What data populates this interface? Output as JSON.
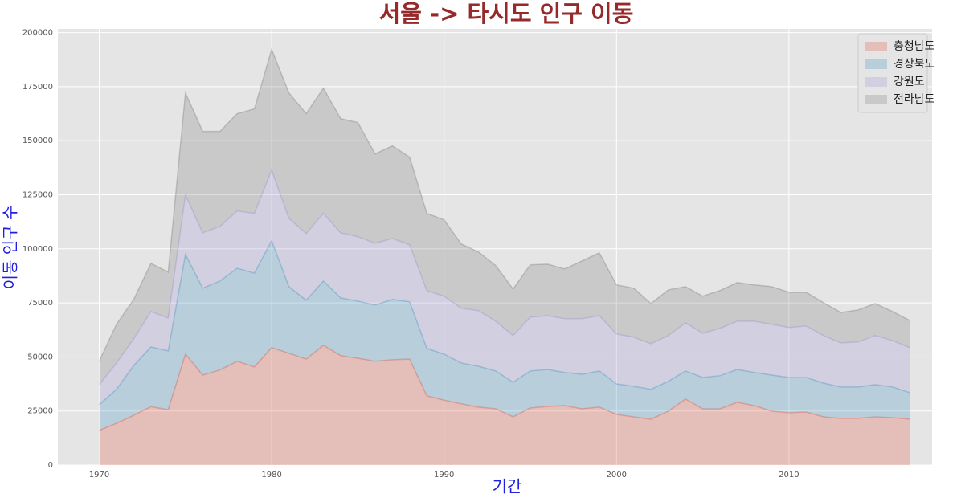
{
  "chart_data": {
    "type": "stacked_area",
    "title": "서울 -> 타시도 인구 이동",
    "xlabel": "기간",
    "ylabel": "이동 인구 수",
    "x": [
      1970,
      1971,
      1972,
      1973,
      1974,
      1975,
      1976,
      1977,
      1978,
      1979,
      1980,
      1981,
      1982,
      1983,
      1984,
      1985,
      1986,
      1987,
      1988,
      1989,
      1990,
      1991,
      1992,
      1993,
      1994,
      1995,
      1996,
      1997,
      1998,
      1999,
      2000,
      2001,
      2002,
      2003,
      2004,
      2005,
      2006,
      2007,
      2008,
      2009,
      2010,
      2011,
      2012,
      2013,
      2014,
      2015,
      2016,
      2017
    ],
    "series": [
      {
        "name": "충청남도",
        "color": "#E24A33",
        "values": [
          16000,
          19300,
          23000,
          27000,
          25600,
          51300,
          41600,
          44000,
          48000,
          45400,
          54300,
          51700,
          49000,
          55400,
          50600,
          49400,
          48000,
          48700,
          49000,
          32000,
          30000,
          28300,
          26800,
          26000,
          22300,
          26400,
          27100,
          27500,
          26000,
          26800,
          23400,
          22300,
          21200,
          24900,
          30500,
          26000,
          26000,
          29000,
          27500,
          24900,
          24200,
          24500,
          22300,
          21600,
          21600,
          22300,
          21900,
          21200
        ]
      },
      {
        "name": "경상북도",
        "color": "#348ABD",
        "values": [
          11900,
          15700,
          23000,
          27600,
          27200,
          46100,
          40200,
          41100,
          43000,
          43400,
          49400,
          30800,
          27200,
          29700,
          26700,
          26400,
          26000,
          27900,
          26500,
          21900,
          21300,
          18900,
          18900,
          17500,
          16000,
          17100,
          17100,
          15300,
          16000,
          16700,
          14100,
          14100,
          13800,
          13800,
          13000,
          14500,
          15300,
          15200,
          15300,
          16700,
          16300,
          16000,
          15600,
          14500,
          14500,
          14900,
          14200,
          12300
        ]
      },
      {
        "name": "강원도",
        "color": "#988ED5",
        "values": [
          9300,
          12200,
          12400,
          16400,
          15200,
          27500,
          25600,
          25300,
          26500,
          27600,
          32700,
          31600,
          30900,
          31300,
          30100,
          29800,
          28600,
          28200,
          26400,
          26800,
          26800,
          25300,
          25700,
          23000,
          21600,
          24900,
          24900,
          24900,
          25700,
          25600,
          23100,
          22700,
          21100,
          21200,
          22300,
          20500,
          21900,
          22300,
          23700,
          23500,
          23100,
          23800,
          22000,
          20400,
          20800,
          22700,
          21500,
          20800
        ]
      },
      {
        "name": "전라남도",
        "color": "#777777",
        "values": [
          10800,
          17900,
          18200,
          22300,
          21200,
          47200,
          46900,
          43900,
          45000,
          48300,
          55800,
          58000,
          55400,
          57900,
          52800,
          52800,
          41300,
          42800,
          40500,
          35700,
          35300,
          29700,
          27100,
          25700,
          21500,
          24200,
          23800,
          23000,
          26700,
          29000,
          22700,
          22700,
          18600,
          21100,
          16700,
          17100,
          17500,
          17900,
          16800,
          17400,
          16300,
          15600,
          15200,
          14100,
          14800,
          14800,
          13400,
          12600
        ]
      }
    ],
    "alpha": 0.25,
    "xlim": [
      1967.6,
      2018.3
    ],
    "ylim": [
      0,
      201700
    ],
    "xticks": [
      1970,
      1980,
      1990,
      2000,
      2010
    ],
    "yticks": [
      0,
      25000,
      50000,
      75000,
      100000,
      125000,
      150000,
      175000,
      200000
    ],
    "grid": true,
    "legend": "upper right"
  }
}
